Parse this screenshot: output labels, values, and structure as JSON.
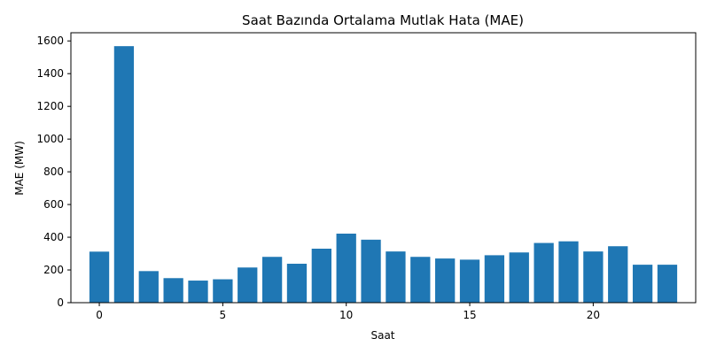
{
  "chart_data": {
    "type": "bar",
    "title": "Saat Bazında Ortalama Mutlak Hata (MAE)",
    "xlabel": "Saat",
    "ylabel": "MAE (MW)",
    "x": [
      0,
      1,
      2,
      3,
      4,
      5,
      6,
      7,
      8,
      9,
      10,
      11,
      12,
      13,
      14,
      15,
      16,
      17,
      18,
      19,
      20,
      21,
      22,
      23
    ],
    "values": [
      312,
      1568,
      193,
      150,
      135,
      143,
      215,
      280,
      238,
      330,
      422,
      385,
      313,
      280,
      270,
      263,
      290,
      307,
      365,
      375,
      313,
      345,
      232,
      232
    ],
    "xlim": [
      -1.15,
      24.15
    ],
    "ylim": [
      0,
      1650
    ],
    "xticks": [
      0,
      5,
      10,
      15,
      20
    ],
    "yticks": [
      0,
      200,
      400,
      600,
      800,
      1000,
      1200,
      1400,
      1600
    ],
    "bar_color": "#1f77b4",
    "grid": false,
    "legend": false
  }
}
